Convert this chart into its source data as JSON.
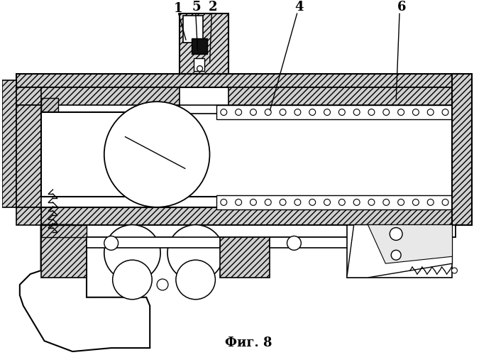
{
  "title": "Фиг. 8",
  "label_1": "1",
  "label_2": "2",
  "label_3": "4",
  "label_4": "5",
  "label_5": "6",
  "bg_color": "#ffffff",
  "line_color": "#000000",
  "hatch_color": "#000000"
}
